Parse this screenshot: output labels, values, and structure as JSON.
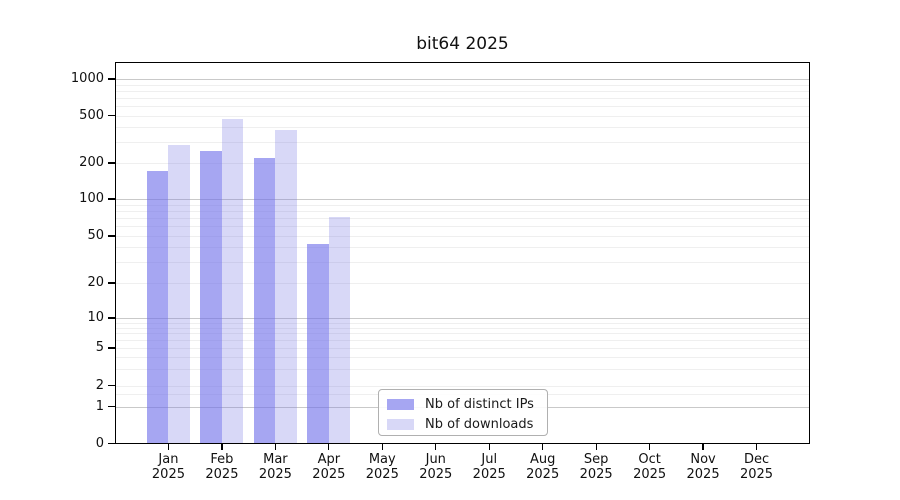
{
  "title": "bit64 2025",
  "chart_data": {
    "type": "bar",
    "title": "bit64 2025",
    "categories": [
      "Jan 2025",
      "Feb 2025",
      "Mar 2025",
      "Apr 2025",
      "May 2025",
      "Jun 2025",
      "Jul 2025",
      "Aug 2025",
      "Sep 2025",
      "Oct 2025",
      "Nov 2025",
      "Dec 2025"
    ],
    "series": [
      {
        "name": "Nb of distinct IPs",
        "color": "#a6a6f2",
        "values": [
          170,
          250,
          220,
          43,
          null,
          null,
          null,
          null,
          null,
          null,
          null,
          null
        ]
      },
      {
        "name": "Nb of downloads",
        "color": "#d8d8f7",
        "values": [
          285,
          465,
          375,
          71,
          null,
          null,
          null,
          null,
          null,
          null,
          null,
          null
        ]
      }
    ],
    "yscale": "log",
    "yticks": [
      0,
      1,
      2,
      5,
      10,
      20,
      50,
      100,
      200,
      500,
      1000
    ],
    "ylim": [
      0,
      1400
    ],
    "xlabel": "",
    "ylabel": "",
    "grid": "horizontal log minor and major gridlines",
    "legend_position": "lower center"
  },
  "legend": {
    "items": [
      "Nb of distinct IPs",
      "Nb of downloads"
    ]
  },
  "colors": {
    "bar_distinct_ips": "#a6a6f2",
    "bar_downloads": "#d8d8f7",
    "grid_major": "#c9c9c9",
    "grid_minor": "#efefef",
    "axis": "#000000",
    "background": "#ffffff"
  }
}
